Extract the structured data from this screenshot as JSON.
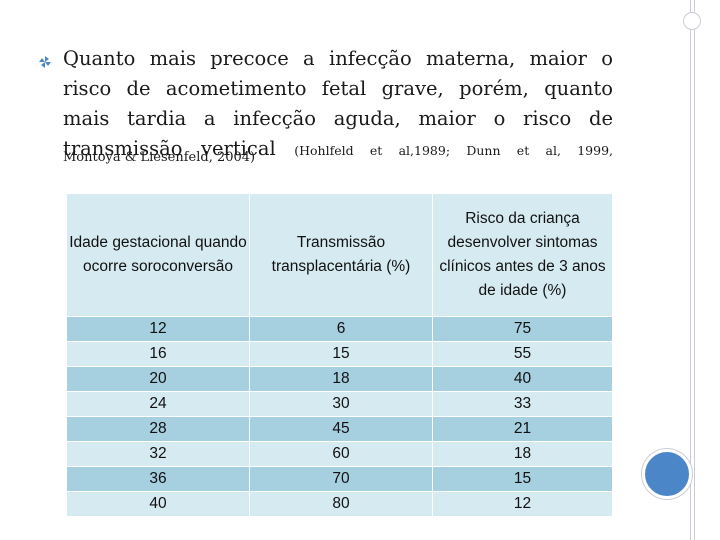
{
  "bullet": {
    "icon": "pinwheel-bullet-icon",
    "lines": [
      "Quanto mais precoce a infecção materna, maior o",
      "risco de acometimento fetal grave, porém, quanto",
      "mais tardia a infecção aguda, maior o risco de",
      "transmissão vertical"
    ],
    "citation_inline": "(Hohlfeld et al,1989; Dunn et al, 1999,",
    "citation_cont": "Montoya & Liesenfeld, 2004)"
  },
  "table": {
    "headers": [
      "Idade gestacional quando ocorre soroconversão",
      "Transmissão transplacentária (%)",
      "Risco da criança desenvolver sintomas clínicos antes de 3 anos de idade (%)"
    ],
    "rows": [
      [
        "12",
        "6",
        "75"
      ],
      [
        "16",
        "15",
        "55"
      ],
      [
        "20",
        "18",
        "40"
      ],
      [
        "24",
        "30",
        "33"
      ],
      [
        "28",
        "45",
        "21"
      ],
      [
        "32",
        "60",
        "18"
      ],
      [
        "36",
        "70",
        "15"
      ],
      [
        "40",
        "80",
        "12"
      ]
    ]
  },
  "colors": {
    "header_bg": "#d6eaf1",
    "row_light": "#d6eaf1",
    "row_dark": "#a6cfe0",
    "accent_circle": "#4a86c8"
  }
}
